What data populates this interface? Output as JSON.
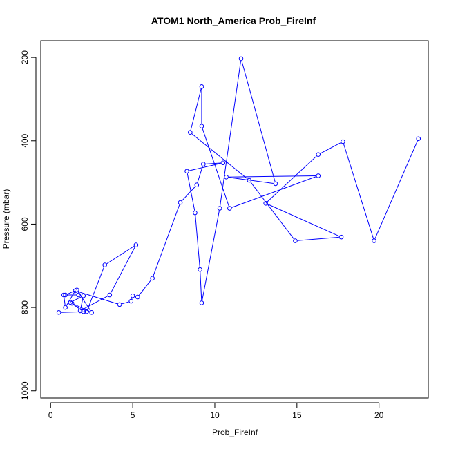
{
  "chart_data": {
    "type": "line",
    "title": "ATOM1 North_America Prob_FireInf",
    "xlabel": "Prob_FireInf",
    "ylabel": "Pressure (mbar)",
    "xlim": [
      -0.6,
      23.0
    ],
    "ylim": [
      1017,
      160
    ],
    "y_reversed": true,
    "x_ticks": [
      0,
      5,
      10,
      15,
      20
    ],
    "y_ticks": [
      200,
      400,
      600,
      800,
      1000
    ],
    "grid": false,
    "legend": "none",
    "series_color": "#0000ff",
    "series": [
      {
        "x": [
          0.5,
          2.2,
          3.3,
          5.2,
          3.6,
          1.8,
          2.0,
          1.2,
          2.0,
          1.3,
          2.5,
          1.6,
          0.9,
          1.7,
          0.8,
          0.9,
          1.5,
          4.2,
          4.9,
          5.0,
          5.3,
          6.2,
          7.9,
          8.9,
          9.3,
          10.5,
          8.3,
          8.8,
          9.1,
          9.2,
          10.3,
          11.6,
          13.7,
          10.7,
          16.3,
          10.9,
          9.2,
          9.2,
          8.5,
          12.1,
          14.9,
          17.7,
          13.1,
          16.3,
          17.8,
          19.7,
          22.4
        ],
        "y": [
          812,
          810,
          698,
          650,
          770,
          808,
          772,
          788,
          810,
          790,
          812,
          758,
          770,
          770,
          770,
          800,
          760,
          793,
          785,
          772,
          775,
          730,
          548,
          506,
          456,
          453,
          473,
          573,
          709,
          789,
          562,
          203,
          503,
          487,
          484,
          562,
          365,
          270,
          380,
          495,
          640,
          631,
          550,
          433,
          402,
          640,
          395
        ]
      }
    ]
  }
}
